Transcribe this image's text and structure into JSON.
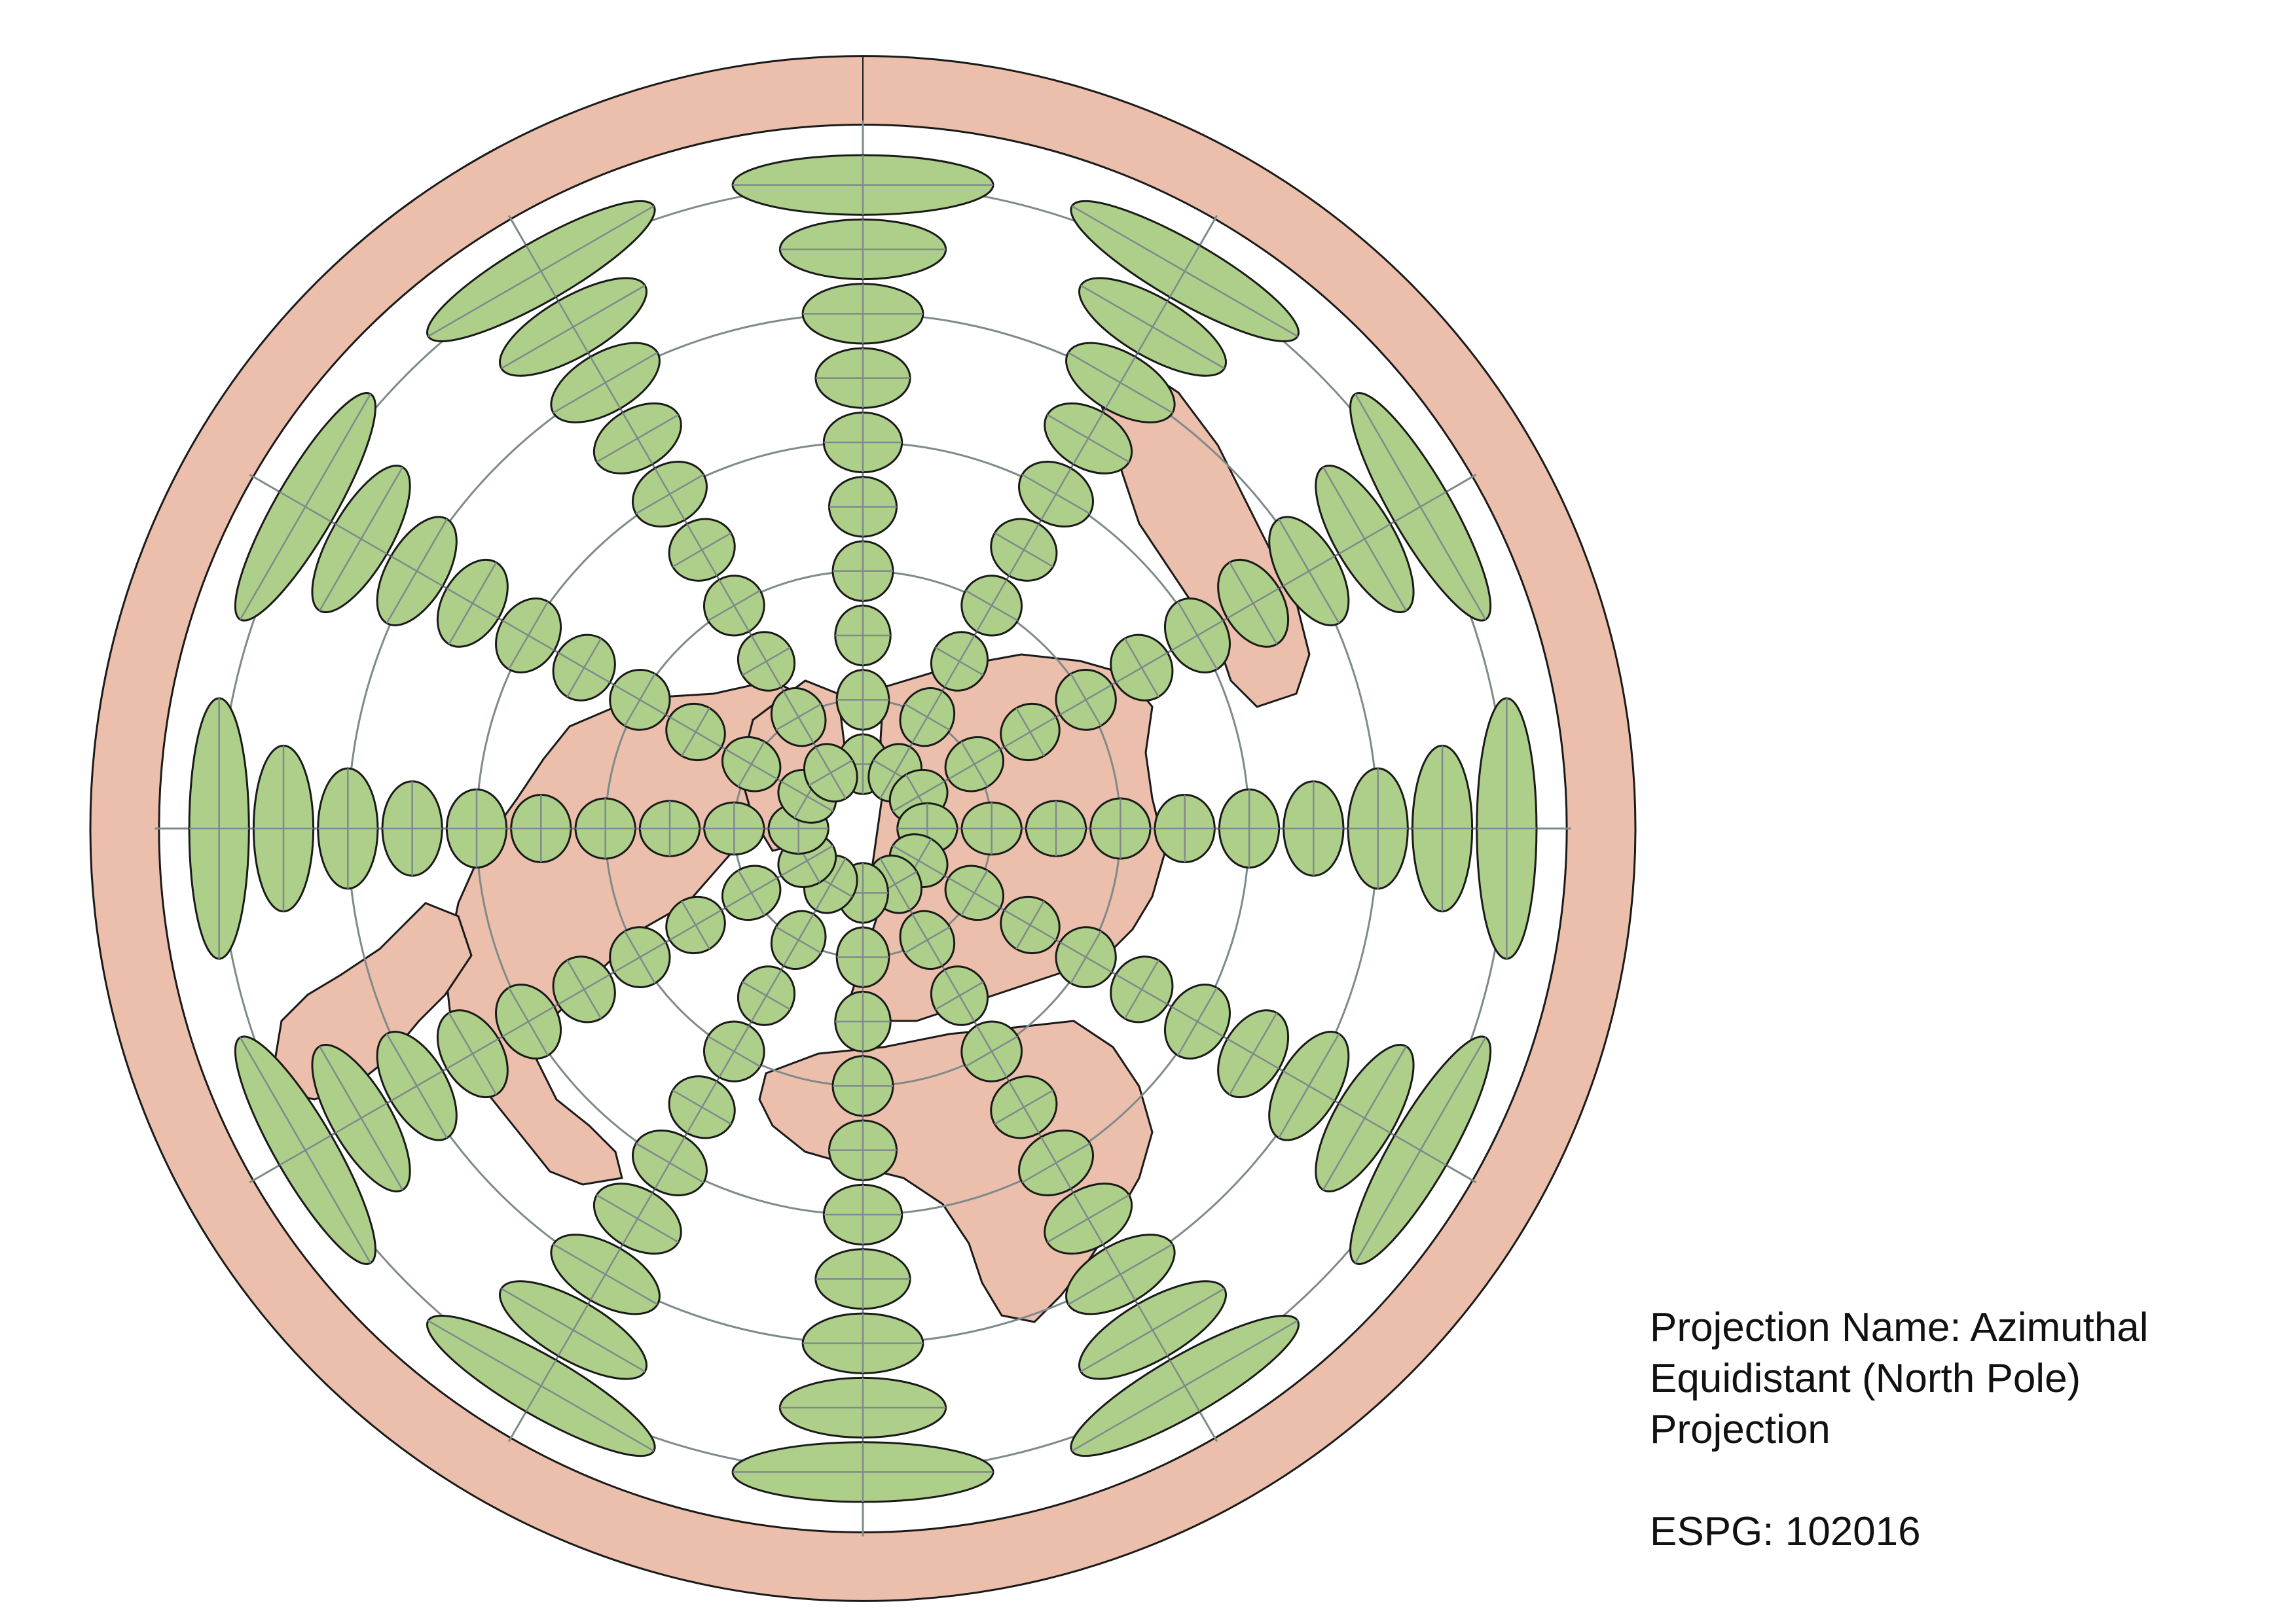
{
  "map": {
    "projection_label": "Projection Name: Azimuthal\nEquidistant (North Pole)\nProjection",
    "epsg_label": "ESPG: 102016",
    "colors": {
      "background": "#ffffff",
      "land": "#ecbfac",
      "outer_ring": "#ecbfac",
      "ellipse_fill": "#adcf8a",
      "graticule": "#7f8a8a",
      "outline": "#1a1a1a"
    },
    "graticule": {
      "latitude_circles_deg": [
        60,
        30,
        0,
        -30,
        -60
      ],
      "meridian_step_deg": 30
    },
    "tissot_indicatrices": {
      "latitudes_deg": [
        75,
        60,
        45,
        30,
        15,
        0,
        -15,
        -30,
        -45,
        -60
      ],
      "meridian_step_deg": 30
    }
  }
}
